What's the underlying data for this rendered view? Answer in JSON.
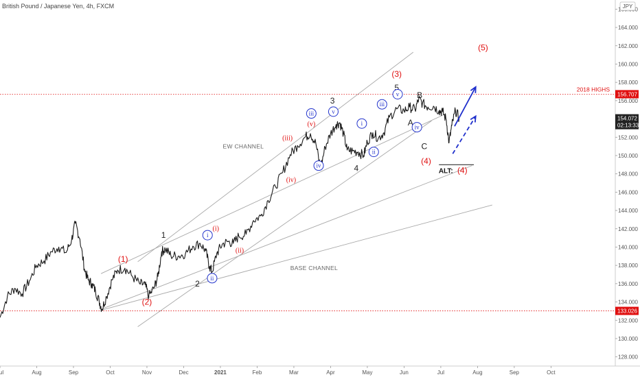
{
  "chart_data": {
    "type": "line",
    "title": "British Pound / Japanese Yen, 4h, FXCM",
    "currency_badge": "JPY",
    "y_ticks": [
      "128.000",
      "130.000",
      "132.000",
      "134.000",
      "136.000",
      "138.000",
      "140.000",
      "142.000",
      "144.000",
      "146.000",
      "148.000",
      "150.000",
      "152.000",
      "154.000",
      "156.000",
      "158.000",
      "160.000",
      "162.000",
      "164.000",
      "166.000"
    ],
    "ylim": [
      127,
      167
    ],
    "x_ticks": [
      "Jul",
      "Aug",
      "Sep",
      "Oct",
      "Nov",
      "Dec",
      "2021",
      "Feb",
      "Mar",
      "Apr",
      "May",
      "Jun",
      "Jul",
      "Aug",
      "Sep",
      "Oct"
    ],
    "x_tick_pos": [
      0,
      2,
      4,
      6,
      8,
      10,
      12,
      14,
      16,
      18,
      20,
      22,
      24,
      26,
      28,
      30
    ],
    "xlim": [
      0,
      33.5
    ],
    "price": [
      [
        0,
        132.3
      ],
      [
        0.4,
        134.6
      ],
      [
        0.8,
        135.5
      ],
      [
        1.2,
        134.9
      ],
      [
        1.6,
        136.3
      ],
      [
        2.0,
        138.0
      ],
      [
        2.4,
        138.5
      ],
      [
        2.8,
        139.5
      ],
      [
        3.2,
        140.0
      ],
      [
        3.6,
        139.4
      ],
      [
        3.9,
        140.8
      ],
      [
        4.1,
        142.6
      ],
      [
        4.35,
        140.9
      ],
      [
        4.6,
        137.6
      ],
      [
        4.8,
        136.4
      ],
      [
        5.0,
        136.0
      ],
      [
        5.2,
        135.2
      ],
      [
        5.4,
        134.1
      ],
      [
        5.55,
        133.2
      ],
      [
        5.8,
        134.6
      ],
      [
        6.1,
        136.4
      ],
      [
        6.4,
        137.5
      ],
      [
        6.8,
        137.7
      ],
      [
        7.2,
        136.8
      ],
      [
        7.6,
        136.0
      ],
      [
        7.9,
        135.9
      ],
      [
        8.1,
        134.6
      ],
      [
        8.4,
        135.6
      ],
      [
        8.6,
        136.8
      ],
      [
        8.8,
        139.5
      ],
      [
        9.0,
        139.8
      ],
      [
        9.3,
        139.1
      ],
      [
        9.7,
        139.0
      ],
      [
        10.1,
        139.3
      ],
      [
        10.5,
        140.1
      ],
      [
        10.9,
        140.4
      ],
      [
        11.2,
        139.6
      ],
      [
        11.4,
        137.9
      ],
      [
        11.55,
        137.3
      ],
      [
        11.8,
        139.3
      ],
      [
        12.1,
        140.3
      ],
      [
        12.4,
        140.6
      ],
      [
        12.7,
        140.4
      ],
      [
        13.0,
        141.2
      ],
      [
        13.4,
        141.4
      ],
      [
        13.8,
        142.9
      ],
      [
        14.2,
        143.4
      ],
      [
        14.6,
        145.1
      ],
      [
        15.0,
        146.6
      ],
      [
        15.4,
        148.2
      ],
      [
        15.8,
        150.1
      ],
      [
        16.2,
        151.1
      ],
      [
        16.6,
        152.0
      ],
      [
        16.9,
        152.4
      ],
      [
        17.2,
        151.3
      ],
      [
        17.45,
        148.6
      ],
      [
        17.7,
        150.9
      ],
      [
        18.0,
        152.4
      ],
      [
        18.3,
        153.4
      ],
      [
        18.5,
        153.6
      ],
      [
        18.7,
        152.4
      ],
      [
        18.9,
        150.6
      ],
      [
        19.2,
        150.5
      ],
      [
        19.5,
        150.4
      ],
      [
        19.8,
        150.0
      ],
      [
        20.0,
        151.5
      ],
      [
        20.3,
        152.5
      ],
      [
        20.6,
        151.9
      ],
      [
        20.9,
        152.5
      ],
      [
        21.2,
        154.2
      ],
      [
        21.6,
        155.1
      ],
      [
        22.0,
        154.9
      ],
      [
        22.3,
        155.3
      ],
      [
        22.6,
        155.0
      ],
      [
        22.8,
        156.2
      ],
      [
        23.0,
        155.7
      ],
      [
        23.3,
        155.3
      ],
      [
        23.6,
        155.4
      ],
      [
        23.9,
        154.9
      ],
      [
        24.1,
        154.8
      ],
      [
        24.3,
        153.9
      ],
      [
        24.45,
        151.4
      ],
      [
        24.6,
        153.3
      ],
      [
        24.8,
        154.9
      ],
      [
        25.0,
        154.1
      ]
    ],
    "series": [
      {
        "name": "",
        "values": [
          132.3,
          134.6,
          135.5,
          134.9,
          136.3,
          138.0,
          138.5,
          139.5,
          140.0,
          139.4,
          140.8,
          142.6,
          140.9,
          137.6,
          136.4,
          136.0,
          135.2,
          134.1,
          133.2,
          134.6,
          136.4,
          137.5,
          137.7,
          136.8,
          136.0,
          135.9,
          134.6,
          135.6,
          136.8,
          139.5,
          139.8,
          139.1,
          139.0,
          139.3,
          140.1,
          140.4,
          139.6,
          137.9,
          137.3,
          139.3,
          140.3,
          140.6,
          140.4,
          141.2,
          141.4,
          142.9,
          143.4,
          145.1,
          146.6,
          148.2,
          150.1,
          151.1,
          152.0,
          152.4,
          151.3,
          148.6,
          150.9,
          152.4,
          153.4,
          153.6,
          152.4,
          150.6,
          150.5,
          150.4,
          150.0,
          151.5,
          152.5,
          151.9,
          152.5,
          154.2,
          155.1,
          154.9,
          155.3,
          155.0,
          156.2,
          155.7,
          155.3,
          155.4,
          154.9,
          154.8,
          153.9,
          151.4,
          153.3,
          154.9,
          154.1
        ]
      }
    ],
    "trendlines": [
      {
        "from": [
          5.5,
          137.1
        ],
        "to": [
          24.2,
          154.5
        ]
      },
      {
        "from": [
          5.5,
          133.2
        ],
        "to": [
          25.7,
          148.9
        ]
      },
      {
        "from": [
          5.5,
          133.1
        ],
        "to": [
          26.8,
          144.6
        ]
      },
      {
        "from": [
          7.5,
          138.4
        ],
        "to": [
          22.5,
          161.3
        ]
      },
      {
        "from": [
          7.5,
          131.3
        ],
        "to": [
          23.5,
          153.8
        ]
      },
      {
        "from": [
          23.9,
          149.0
        ],
        "to": [
          25.8,
          149.0
        ]
      }
    ],
    "hlines": [
      {
        "value": 156.707,
        "label": "156.707",
        "note": "2018 HIGHS"
      },
      {
        "value": 133.026,
        "label": "133.026"
      }
    ],
    "last_price": {
      "value": 154.072,
      "label": "154.072",
      "timer": "02:13:33"
    },
    "annotations": [
      {
        "text": "(1)",
        "x": 6.7,
        "y": 138.7,
        "color": "#e01010",
        "style": "plain"
      },
      {
        "text": "(2)",
        "x": 8.0,
        "y": 134.0,
        "color": "#e01010",
        "style": "plain"
      },
      {
        "text": "(3)",
        "x": 21.6,
        "y": 158.9,
        "color": "#e01010",
        "style": "plain"
      },
      {
        "text": "(4)",
        "x": 23.2,
        "y": 149.4,
        "color": "#e01010",
        "style": "plain"
      },
      {
        "text": "(5)",
        "x": 26.3,
        "y": 161.8,
        "color": "#e01010",
        "style": "plain"
      },
      {
        "text": "1",
        "x": 8.9,
        "y": 141.3,
        "color": "#222",
        "style": "plain"
      },
      {
        "text": "2",
        "x": 10.75,
        "y": 136.0,
        "color": "#222",
        "style": "plain"
      },
      {
        "text": "3",
        "x": 18.1,
        "y": 156.0,
        "color": "#222",
        "style": "plain"
      },
      {
        "text": "4",
        "x": 19.4,
        "y": 148.6,
        "color": "#222",
        "style": "plain"
      },
      {
        "text": "5",
        "x": 21.6,
        "y": 157.4,
        "color": "#222",
        "style": "plain"
      },
      {
        "text": "B",
        "x": 22.85,
        "y": 156.6,
        "color": "#222",
        "style": "plain"
      },
      {
        "text": "A",
        "x": 22.35,
        "y": 153.6,
        "color": "#222",
        "style": "plain"
      },
      {
        "text": "C",
        "x": 23.1,
        "y": 151.0,
        "color": "#222",
        "style": "plain"
      },
      {
        "text": "(i)",
        "x": 11.75,
        "y": 142.1,
        "color": "#e01010",
        "style": "small"
      },
      {
        "text": "(ii)",
        "x": 13.05,
        "y": 139.7,
        "color": "#e01010",
        "style": "small"
      },
      {
        "text": "(iii)",
        "x": 15.65,
        "y": 152.0,
        "color": "#e01010",
        "style": "small"
      },
      {
        "text": "(iv)",
        "x": 15.85,
        "y": 147.4,
        "color": "#e01010",
        "style": "small"
      },
      {
        "text": "(v)",
        "x": 16.95,
        "y": 153.5,
        "color": "#e01010",
        "style": "small"
      },
      {
        "text": "i",
        "x": 11.3,
        "y": 141.3,
        "color": "#2233cc",
        "style": "circle"
      },
      {
        "text": "ii",
        "x": 11.55,
        "y": 136.6,
        "color": "#2233cc",
        "style": "circle"
      },
      {
        "text": "iii",
        "x": 16.95,
        "y": 154.6,
        "color": "#2233cc",
        "style": "circle"
      },
      {
        "text": "iv",
        "x": 17.35,
        "y": 148.9,
        "color": "#2233cc",
        "style": "circle"
      },
      {
        "text": "v",
        "x": 18.15,
        "y": 154.8,
        "color": "#2233cc",
        "style": "circle"
      },
      {
        "text": "i",
        "x": 19.7,
        "y": 153.5,
        "color": "#2233cc",
        "style": "circle"
      },
      {
        "text": "ii",
        "x": 20.35,
        "y": 150.4,
        "color": "#2233cc",
        "style": "circle"
      },
      {
        "text": "iii",
        "x": 20.8,
        "y": 155.6,
        "color": "#2233cc",
        "style": "circle"
      },
      {
        "text": "iv",
        "x": 22.7,
        "y": 153.1,
        "color": "#2233cc",
        "style": "circle"
      },
      {
        "text": "v",
        "x": 21.65,
        "y": 156.7,
        "color": "#2233cc",
        "style": "circle"
      }
    ],
    "alt_label": {
      "prefix": "ALT:",
      "wave": "(4)",
      "x": 24.5,
      "y": 148.4
    },
    "channel_labels": [
      {
        "text": "EW CHANNEL",
        "x": 13.25,
        "y": 150.8
      },
      {
        "text": "BASE CHANNEL",
        "x": 17.1,
        "y": 137.5
      }
    ],
    "arrows": [
      {
        "from": [
          24.75,
          153.2
        ],
        "to": [
          25.9,
          157.5
        ],
        "style": "solid",
        "color": "#1f2fcc"
      },
      {
        "from": [
          24.65,
          150.2
        ],
        "to": [
          25.9,
          154.3
        ],
        "style": "dashed",
        "color": "#1f2fcc"
      }
    ],
    "colors": {
      "price": "#1a1a1a",
      "trendline": "#a8a8a8",
      "red": "#e01010",
      "blue": "#1f2fcc",
      "last_price_bg": "#222222"
    }
  }
}
